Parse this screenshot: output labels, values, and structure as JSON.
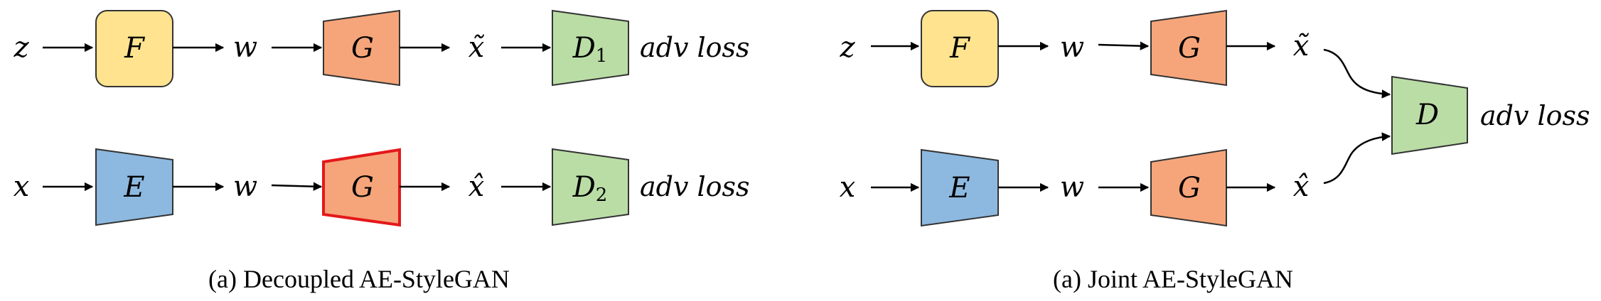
{
  "colors": {
    "mapping_fill": "#FFE38F",
    "generator_fill": "#F6A57A",
    "discriminator_fill": "#BADDA6",
    "encoder_fill": "#8DB9E0",
    "highlight_stroke": "#E3191B",
    "stroke": "#333333"
  },
  "left": {
    "caption": "(a) Decoupled AE-StyleGAN",
    "top_row": {
      "input": "z",
      "mapping": "F",
      "latent": "w",
      "generator": "G",
      "output": "x̃",
      "disc": "D",
      "disc_sub": "1",
      "loss": "adv loss"
    },
    "bottom_row": {
      "input": "x",
      "encoder": "E",
      "latent": "w",
      "generator": "G",
      "output": "x̂",
      "disc": "D",
      "disc_sub": "2",
      "loss": "adv loss"
    }
  },
  "right": {
    "caption": "(a) Joint AE-StyleGAN",
    "top_row": {
      "input": "z",
      "mapping": "F",
      "latent": "w",
      "generator": "G",
      "output": "x̃"
    },
    "bottom_row": {
      "input": "x",
      "encoder": "E",
      "latent": "w",
      "generator": "G",
      "output": "x̂"
    },
    "disc": "D",
    "loss": "adv loss"
  }
}
